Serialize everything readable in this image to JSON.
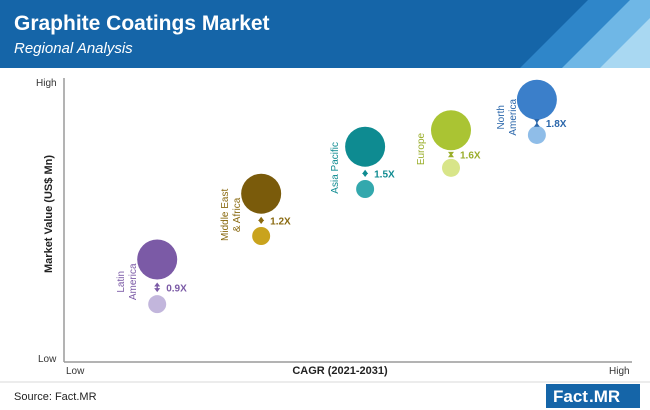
{
  "header": {
    "title": "Graphite Coatings Market",
    "subtitle": "Regional Analysis",
    "bg_color": "#1565a8",
    "stripe_colors": [
      "#2f86c9",
      "#6fb7e6",
      "#a9d8f2"
    ]
  },
  "footer": {
    "source": "Source: Fact.MR",
    "logo_main": "Fact",
    "logo_accent": ".MR",
    "logo_bg": "#1565a8",
    "logo_accent_color": "#f5a623"
  },
  "chart_data": {
    "type": "scatter",
    "xlabel": "CAGR (2021-2031)",
    "ylabel": "Market Value (US$ Mn)",
    "x_range_labels": [
      "Low",
      "High"
    ],
    "y_range_labels": [
      "Low",
      "High"
    ],
    "xlim": [
      0,
      1
    ],
    "ylim": [
      0,
      1
    ],
    "grid": false,
    "regions": [
      {
        "name_lines": [
          "Latin",
          "America"
        ],
        "multiplier": "0.9X",
        "color": "#7b5aa6",
        "label_color": "#7b5aa6",
        "small_color": "#c2b6dc",
        "x": 0.1,
        "y_large": 0.3,
        "y_small": 0.11
      },
      {
        "name_lines": [
          "Middle East",
          "& Africa"
        ],
        "multiplier": "1.2X",
        "color": "#7a5b0b",
        "label_color": "#8a6a10",
        "small_color": "#c9a31d",
        "x": 0.33,
        "y_large": 0.58,
        "y_small": 0.4
      },
      {
        "name_lines": [
          "Asia Pacific"
        ],
        "multiplier": "1.5X",
        "color": "#0e8b91",
        "label_color": "#0e8b91",
        "small_color": "#33a8ad",
        "x": 0.56,
        "y_large": 0.78,
        "y_small": 0.6
      },
      {
        "name_lines": [
          "Europe"
        ],
        "multiplier": "1.6X",
        "color": "#aac433",
        "label_color": "#9aae2a",
        "small_color": "#d8e589",
        "x": 0.75,
        "y_large": 0.85,
        "y_small": 0.69
      },
      {
        "name_lines": [
          "North",
          "America"
        ],
        "multiplier": "1.8X",
        "color": "#3b7fca",
        "label_color": "#2a66aa",
        "small_color": "#8fbde8",
        "x": 0.94,
        "y_large": 0.98,
        "y_small": 0.83
      }
    ]
  }
}
